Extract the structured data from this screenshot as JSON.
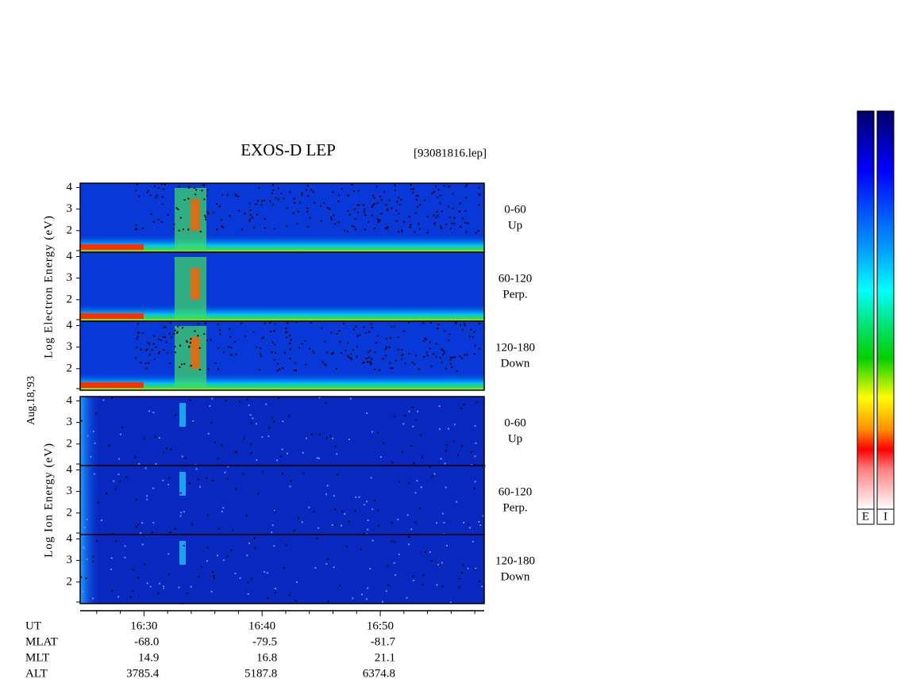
{
  "header": {
    "title": "EXOS-D LEP",
    "file": "[93081816.lep]"
  },
  "axes": {
    "xlim": [
      24.6,
      58.8
    ],
    "xticks": [
      {
        "value": 30,
        "label": "16:30"
      },
      {
        "value": 40,
        "label": "16:40"
      },
      {
        "value": 50,
        "label": "16:50"
      }
    ],
    "xminorticks": [
      26,
      28,
      32,
      34,
      36,
      38,
      42,
      44,
      46,
      48,
      52,
      54,
      56,
      58
    ],
    "ylim": [
      1,
      4.2
    ],
    "yticks": [
      2,
      3,
      4
    ]
  },
  "date": "Aug.18,'93",
  "groups": [
    {
      "label": "Log Electron Energy (eV)",
      "panels": [
        {
          "angle": "0-60",
          "dir": "Up"
        },
        {
          "angle": "60-120",
          "dir": "Perp."
        },
        {
          "angle": "120-180",
          "dir": "Down"
        }
      ]
    },
    {
      "label": "Log Ion Energy (eV)",
      "panels": [
        {
          "angle": "0-60",
          "dir": "Up"
        },
        {
          "angle": "60-120",
          "dir": "Perp."
        },
        {
          "angle": "120-180",
          "dir": "Down"
        }
      ]
    }
  ],
  "ephemeris": {
    "ut": "UT",
    "rows": [
      {
        "name": "MLAT",
        "values": [
          "-68.0",
          "-79.5",
          "-81.7"
        ]
      },
      {
        "name": "MLT",
        "values": [
          "14.9",
          "16.8",
          "21.1"
        ]
      },
      {
        "name": "ALT",
        "values": [
          "3785.4",
          "5187.8",
          "6374.8"
        ]
      }
    ]
  },
  "colorbars": [
    "E",
    "I"
  ]
}
